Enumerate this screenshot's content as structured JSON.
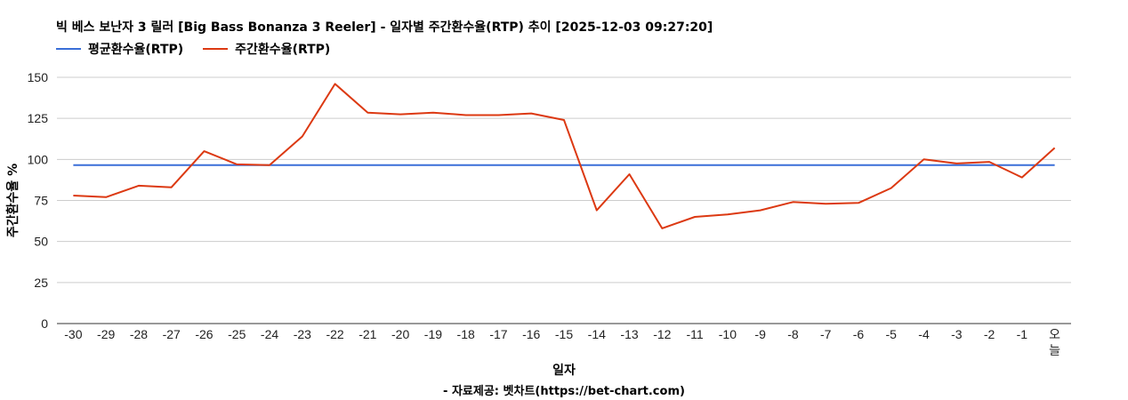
{
  "title": "빅 베스 보난자 3 릴러 [Big Bass Bonanza 3 Reeler] - 일자별 주간환수율(RTP) 추이 [2025-12-03 09:27:20]",
  "footer": "- 자료제공: 벳차트(https://bet-chart.com)",
  "colors": {
    "avg": "#3a6fd8",
    "weekly": "#dc3912",
    "grid": "#cccccc",
    "axis": "#333333"
  },
  "chart_data": {
    "type": "line",
    "xlabel": "일자",
    "ylabel": "주간환수율 %",
    "ylim": [
      0,
      150
    ],
    "yticks": [
      0,
      25,
      50,
      75,
      100,
      125,
      150
    ],
    "grid": true,
    "legend_position": "top-left",
    "categories": [
      "-30",
      "-29",
      "-28",
      "-27",
      "-26",
      "-25",
      "-24",
      "-23",
      "-22",
      "-21",
      "-20",
      "-19",
      "-18",
      "-17",
      "-16",
      "-15",
      "-14",
      "-13",
      "-12",
      "-11",
      "-10",
      "-9",
      "-8",
      "-7",
      "-6",
      "-5",
      "-4",
      "-3",
      "-2",
      "-1",
      "오늘"
    ],
    "series": [
      {
        "name": "평균환수율(RTP)",
        "color": "#3a6fd8",
        "values": [
          96.5,
          96.5,
          96.5,
          96.5,
          96.5,
          96.5,
          96.5,
          96.5,
          96.5,
          96.5,
          96.5,
          96.5,
          96.5,
          96.5,
          96.5,
          96.5,
          96.5,
          96.5,
          96.5,
          96.5,
          96.5,
          96.5,
          96.5,
          96.5,
          96.5,
          96.5,
          96.5,
          96.5,
          96.5,
          96.5,
          96.5
        ]
      },
      {
        "name": "주간환수율(RTP)",
        "color": "#dc3912",
        "values": [
          78,
          77,
          84,
          83,
          105,
          97,
          96.5,
          114,
          146,
          128.5,
          127.5,
          128.5,
          127,
          127,
          128,
          124,
          69,
          91,
          58,
          65,
          66.5,
          69,
          74,
          73,
          73.5,
          82.5,
          100,
          97.5,
          98.5,
          89,
          107
        ]
      }
    ]
  }
}
